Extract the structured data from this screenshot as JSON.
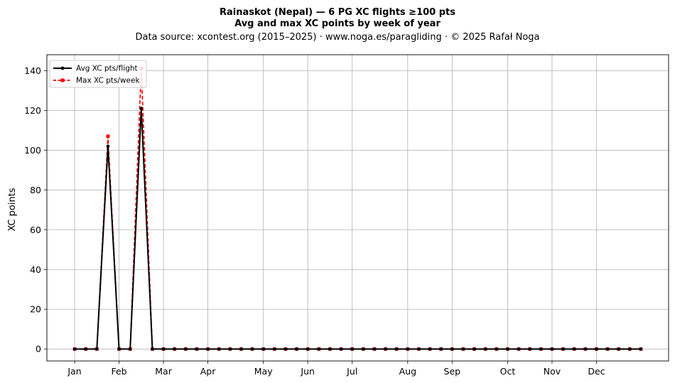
{
  "chart_data": {
    "type": "line",
    "title_line1": "Rainaskot (Nepal)  —  6 PG XC flights ≥100 pts",
    "title_line2": "Avg and max XC points by week of year",
    "subtitle": "Data source: xcontest.org (2015–2025)  ·  www.noga.es/paragliding  ·  © 2025 Rafał Noga",
    "xlabel": "",
    "ylabel": "XC points",
    "ylim": [
      -6,
      148
    ],
    "xlim": [
      -1.5,
      54.5
    ],
    "yticks": [
      0,
      20,
      40,
      60,
      80,
      100,
      120,
      140
    ],
    "month_ticks": [
      {
        "label": "Jan",
        "week": 1
      },
      {
        "label": "Feb",
        "week": 5
      },
      {
        "label": "Mar",
        "week": 9
      },
      {
        "label": "Apr",
        "week": 13
      },
      {
        "label": "May",
        "week": 18
      },
      {
        "label": "Jun",
        "week": 22
      },
      {
        "label": "Jul",
        "week": 26
      },
      {
        "label": "Aug",
        "week": 31
      },
      {
        "label": "Sep",
        "week": 35
      },
      {
        "label": "Oct",
        "week": 40
      },
      {
        "label": "Nov",
        "week": 44
      },
      {
        "label": "Dec",
        "week": 48
      }
    ],
    "grid": true,
    "legend_position": "top-left",
    "weeks": [
      1,
      2,
      3,
      4,
      5,
      6,
      7,
      8,
      9,
      10,
      11,
      12,
      13,
      14,
      15,
      16,
      17,
      18,
      19,
      20,
      21,
      22,
      23,
      24,
      25,
      26,
      27,
      28,
      29,
      30,
      31,
      32,
      33,
      34,
      35,
      36,
      37,
      38,
      39,
      40,
      41,
      42,
      43,
      44,
      45,
      46,
      47,
      48,
      49,
      50,
      51,
      52
    ],
    "series": [
      {
        "name": "Avg XC pts/flight",
        "color": "#000000",
        "style": "solid-circle",
        "values": [
          0,
          0,
          0,
          102,
          0,
          0,
          121,
          0,
          0,
          0,
          0,
          0,
          0,
          0,
          0,
          0,
          0,
          0,
          0,
          0,
          0,
          0,
          0,
          0,
          0,
          0,
          0,
          0,
          0,
          0,
          0,
          0,
          0,
          0,
          0,
          0,
          0,
          0,
          0,
          0,
          0,
          0,
          0,
          0,
          0,
          0,
          0,
          0,
          0,
          0,
          0,
          0
        ]
      },
      {
        "name": "Max XC pts/week",
        "color": "#ff0000",
        "style": "dashed-square",
        "values": [
          0,
          0,
          0,
          107,
          0,
          0,
          141,
          0,
          0,
          0,
          0,
          0,
          0,
          0,
          0,
          0,
          0,
          0,
          0,
          0,
          0,
          0,
          0,
          0,
          0,
          0,
          0,
          0,
          0,
          0,
          0,
          0,
          0,
          0,
          0,
          0,
          0,
          0,
          0,
          0,
          0,
          0,
          0,
          0,
          0,
          0,
          0,
          0,
          0,
          0,
          0,
          0
        ]
      }
    ]
  }
}
